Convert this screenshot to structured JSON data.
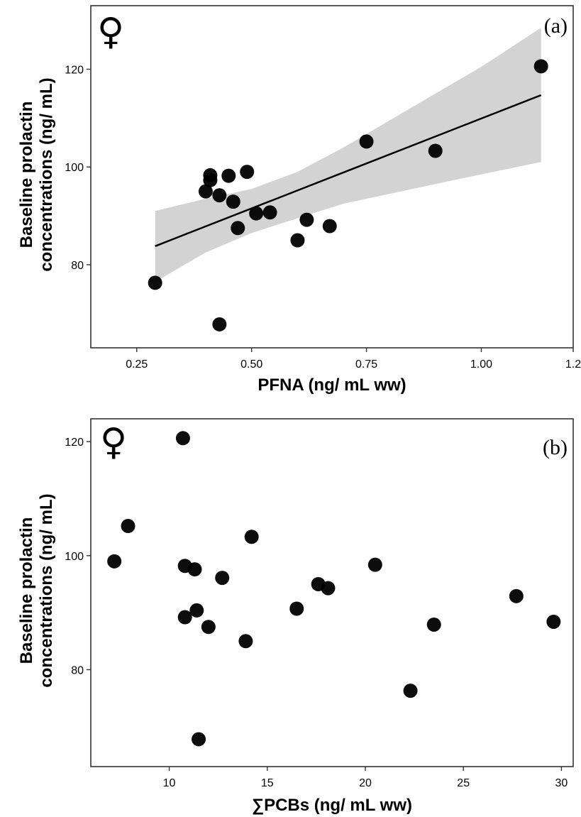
{
  "chart_data": [
    {
      "type": "scatter",
      "panel_label": "(a)",
      "symbol": "♀",
      "xlabel": "PFNA (ng/ mL ww)",
      "ylabel_line1": "Baseline prolactin",
      "ylabel_line2": "concentrations (ng/ mL)",
      "xlim": [
        0.15,
        1.2
      ],
      "ylim": [
        63,
        133
      ],
      "x_ticks": [
        0.25,
        0.5,
        0.75,
        1.0,
        1.2
      ],
      "x_tick_labels": [
        "0.25",
        "0.50",
        "0.75",
        "1.00",
        "1.2"
      ],
      "y_ticks": [
        80,
        100,
        120
      ],
      "y_tick_labels": [
        "80",
        "100",
        "120"
      ],
      "grid": false,
      "has_fit_line": true,
      "fit_line": {
        "x": [
          0.29,
          1.13
        ],
        "y": [
          83.8,
          114.7
        ]
      },
      "confidence_band": {
        "x": [
          0.29,
          0.4,
          0.5,
          0.6,
          0.7,
          0.8,
          0.9,
          1.0,
          1.13
        ],
        "lower": [
          76.5,
          82.5,
          86.5,
          89.5,
          92.5,
          94.5,
          96.5,
          98.5,
          101.0
        ],
        "upper": [
          91.0,
          93.5,
          95.5,
          99.0,
          104.0,
          109.5,
          115.0,
          120.5,
          128.5
        ]
      },
      "points": [
        {
          "x": 0.29,
          "y": 76.3
        },
        {
          "x": 0.4,
          "y": 95.0
        },
        {
          "x": 0.41,
          "y": 98.3
        },
        {
          "x": 0.41,
          "y": 97.3
        },
        {
          "x": 0.43,
          "y": 94.2
        },
        {
          "x": 0.43,
          "y": 67.8
        },
        {
          "x": 0.45,
          "y": 98.2
        },
        {
          "x": 0.46,
          "y": 92.9
        },
        {
          "x": 0.47,
          "y": 87.5
        },
        {
          "x": 0.49,
          "y": 99.0
        },
        {
          "x": 0.51,
          "y": 90.5
        },
        {
          "x": 0.54,
          "y": 90.7
        },
        {
          "x": 0.6,
          "y": 85.0
        },
        {
          "x": 0.62,
          "y": 89.2
        },
        {
          "x": 0.67,
          "y": 87.9
        },
        {
          "x": 0.75,
          "y": 105.2
        },
        {
          "x": 0.9,
          "y": 103.3
        },
        {
          "x": 1.13,
          "y": 120.6
        }
      ]
    },
    {
      "type": "scatter",
      "panel_label": "(b)",
      "symbol": "♀",
      "xlabel": "∑PCBs  (ng/ mL ww)",
      "ylabel_line1": "Baseline prolactin",
      "ylabel_line2": "concentrations (ng/ mL)",
      "xlim": [
        6.0,
        30.6
      ],
      "ylim": [
        63,
        124
      ],
      "x_ticks": [
        10,
        15,
        20,
        25,
        30
      ],
      "x_tick_labels": [
        "10",
        "15",
        "20",
        "25",
        "30"
      ],
      "y_ticks": [
        80,
        100,
        120
      ],
      "y_tick_labels": [
        "80",
        "100",
        "120"
      ],
      "grid": false,
      "has_fit_line": false,
      "points": [
        {
          "x": 7.2,
          "y": 99.0
        },
        {
          "x": 7.9,
          "y": 105.2
        },
        {
          "x": 10.7,
          "y": 120.6
        },
        {
          "x": 10.8,
          "y": 98.2
        },
        {
          "x": 10.8,
          "y": 89.2
        },
        {
          "x": 11.3,
          "y": 97.6
        },
        {
          "x": 11.4,
          "y": 90.4
        },
        {
          "x": 11.5,
          "y": 67.8
        },
        {
          "x": 12.0,
          "y": 87.5
        },
        {
          "x": 12.7,
          "y": 96.1
        },
        {
          "x": 13.9,
          "y": 85.0
        },
        {
          "x": 14.2,
          "y": 103.3
        },
        {
          "x": 16.5,
          "y": 90.7
        },
        {
          "x": 17.6,
          "y": 95.0
        },
        {
          "x": 18.1,
          "y": 94.3
        },
        {
          "x": 20.5,
          "y": 98.4
        },
        {
          "x": 22.3,
          "y": 76.3
        },
        {
          "x": 23.5,
          "y": 87.9
        },
        {
          "x": 27.7,
          "y": 92.9
        },
        {
          "x": 29.6,
          "y": 88.4
        }
      ]
    }
  ],
  "colors": {
    "point": "#000000",
    "fit_line": "#000000",
    "band": "#d3d3d3",
    "frame": "#333333"
  }
}
